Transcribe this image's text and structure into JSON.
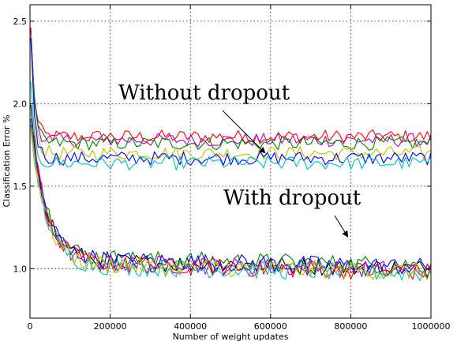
{
  "chart_data": {
    "type": "line",
    "title": "",
    "xlabel": "Number of weight updates",
    "ylabel": "Classification Error %",
    "xlim": [
      0,
      1000000
    ],
    "ylim": [
      0.7,
      2.6
    ],
    "x_ticks": [
      0,
      200000,
      400000,
      600000,
      800000,
      1000000
    ],
    "x_tick_labels": [
      "0",
      "200000",
      "400000",
      "600000",
      "800000",
      "1000000"
    ],
    "y_ticks": [
      1.0,
      1.5,
      2.0,
      2.5
    ],
    "y_tick_labels": [
      "1.0",
      "1.5",
      "2.0",
      "2.5"
    ],
    "grid": true,
    "annotations": [
      {
        "text": "Without dropout",
        "points_to": [
          590000,
          1.68
        ]
      },
      {
        "text": "With dropout",
        "points_to": [
          800000,
          1.19
        ]
      }
    ],
    "colors": {
      "blue": "#0000ff",
      "green": "#008000",
      "red": "#ff0000",
      "cyan": "#00bfbf",
      "magenta": "#bf00bf",
      "olive": "#bfbf00",
      "black": "#000000"
    },
    "series_groups": [
      {
        "group": "Without dropout",
        "series": [
          {
            "color": "#ff0000",
            "start": 2.6,
            "plateau": 1.8
          },
          {
            "color": "#bf00bf",
            "start": 2.6,
            "plateau": 1.78
          },
          {
            "color": "#008000",
            "start": 2.6,
            "plateau": 1.76
          },
          {
            "color": "#bfbf00",
            "start": 2.6,
            "plateau": 1.7
          },
          {
            "color": "#0000ff",
            "start": 2.6,
            "plateau": 1.67
          },
          {
            "color": "#00bfbf",
            "start": 2.2,
            "plateau": 1.64
          }
        ]
      },
      {
        "group": "With dropout",
        "series": [
          {
            "color": "#000000",
            "start": 2.0,
            "plateau": 1.05
          },
          {
            "color": "#008000",
            "start": 2.0,
            "plateau": 1.07
          },
          {
            "color": "#ff0000",
            "start": 2.0,
            "plateau": 1.03
          },
          {
            "color": "#0000ff",
            "start": 1.95,
            "plateau": 1.06
          },
          {
            "color": "#bf00bf",
            "start": 1.95,
            "plateau": 1.04
          },
          {
            "color": "#00bfbf",
            "start": 1.9,
            "plateau": 1.02
          },
          {
            "color": "#bfbf00",
            "start": 1.9,
            "plateau": 1.03
          }
        ]
      }
    ]
  }
}
